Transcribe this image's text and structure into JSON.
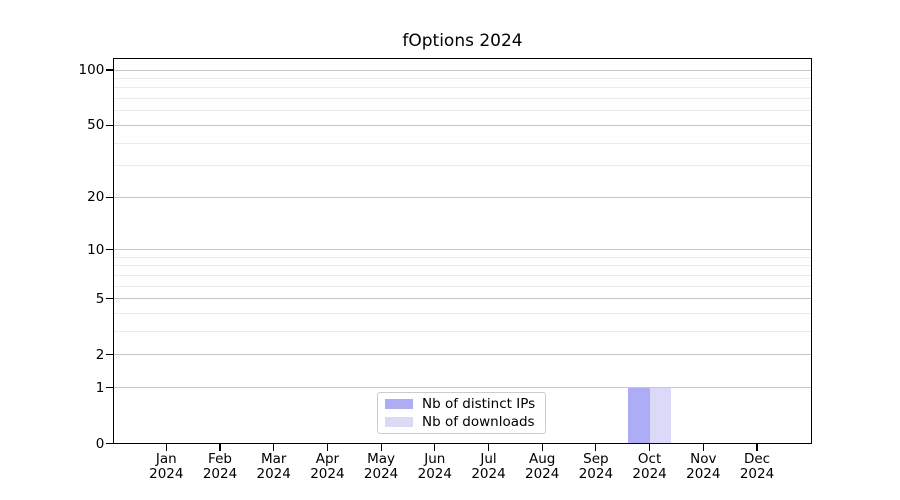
{
  "chart_data": {
    "type": "bar",
    "title": "fOptions 2024",
    "categories": [
      "Jan",
      "Feb",
      "Mar",
      "Apr",
      "May",
      "Jun",
      "Jul",
      "Aug",
      "Sep",
      "Oct",
      "Nov",
      "Dec"
    ],
    "category_year": "2024",
    "series": [
      {
        "name": "Nb of distinct IPs",
        "color": "#acacf7",
        "values": [
          0,
          0,
          0,
          0,
          0,
          0,
          0,
          0,
          0,
          1,
          0,
          0
        ]
      },
      {
        "name": "Nb of downloads",
        "color": "#dadaf8",
        "values": [
          0,
          0,
          0,
          0,
          0,
          0,
          0,
          0,
          0,
          1,
          0,
          0
        ]
      }
    ],
    "yscale": "log1p",
    "ylim": [
      0,
      100
    ],
    "y_major_ticks": [
      0,
      1,
      2,
      5,
      10,
      20,
      50,
      100
    ],
    "y_minor_gridlines": [
      3,
      4,
      6,
      7,
      8,
      9,
      30,
      40,
      60,
      70,
      80,
      90
    ],
    "grid": "horizontal",
    "legend_position": "inside-bottom-center"
  },
  "colors": {
    "background": "#ffffff",
    "text": "#000000",
    "axis": "#000000",
    "grid_major": "#c6c6c6",
    "grid_minor": "#ebebeb",
    "legend_border": "#cccccc",
    "legend_background": "#ffffff"
  }
}
